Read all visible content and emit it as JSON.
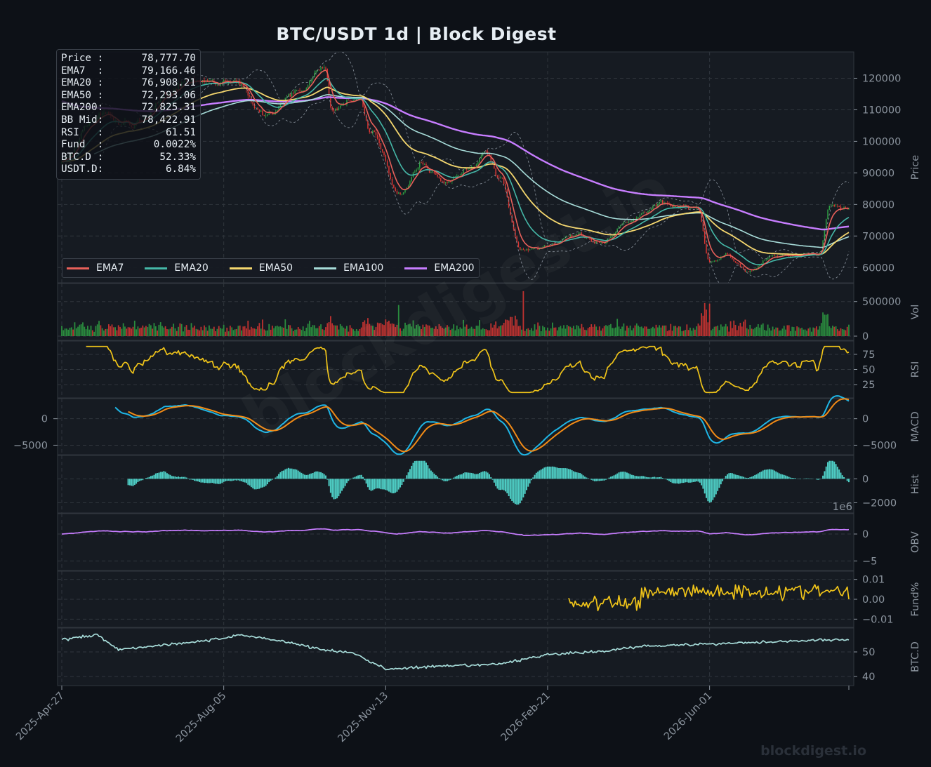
{
  "title": "BTC/USDT  1d  |  Block Digest",
  "info_box": [
    {
      "label": "Price :",
      "value": "78,777.70"
    },
    {
      "label": "EMA7  :",
      "value": "79,166.46"
    },
    {
      "label": "EMA20 :",
      "value": "76,908.21"
    },
    {
      "label": "EMA50 :",
      "value": "72,293.06"
    },
    {
      "label": "EMA200:",
      "value": "72,825.31"
    },
    {
      "label": "BB Mid:",
      "value": "78,422.91"
    },
    {
      "label": "RSI   :",
      "value": "61.51"
    },
    {
      "label": "Fund  :",
      "value": "0.0022%"
    },
    {
      "label": "BTC.D :",
      "value": "52.33%"
    },
    {
      "label": "USDT.D:",
      "value": "6.84%"
    }
  ],
  "legend": [
    {
      "name": "EMA7",
      "color": "#e8605a"
    },
    {
      "name": "EMA20",
      "color": "#45b8a8"
    },
    {
      "name": "EMA50",
      "color": "#f5d76e"
    },
    {
      "name": "EMA100",
      "color": "#a7dcd9"
    },
    {
      "name": "EMA200",
      "color": "#c77dff"
    }
  ],
  "watermark": "blockdigest.io",
  "footer_brand": "blockdigest.io",
  "colors": {
    "background": "#0d1117",
    "panel": "#161b22",
    "up": "#2ea043",
    "down": "#da3633",
    "ema7": "#e8605a",
    "ema20": "#45b8a8",
    "ema50": "#f5d76e",
    "ema100": "#a7dcd9",
    "ema200": "#c77dff",
    "rsi": "#f0c419",
    "macd": "#1fb6e6",
    "signal": "#f28b16",
    "hist": "#4ecdc4",
    "obv": "#c77dff",
    "funding": "#f0c419",
    "btcd": "#a7dcd9",
    "bb": "#8b949e"
  },
  "chart_data": {
    "type": "candlestick",
    "x_tick_labels": [
      "2025-Apr-27",
      "2025-Aug-05",
      "2025-Nov-13",
      "2026-Feb-21",
      "2026-Jun-01"
    ],
    "x_range": [
      "2025-04-27",
      "2026-08-26"
    ],
    "price_anchors": [
      [
        "2025-04-27",
        94000
      ],
      [
        "2025-05-22",
        109000
      ],
      [
        "2025-06-05",
        105000
      ],
      [
        "2025-07-14",
        119000
      ],
      [
        "2025-08-14",
        118000
      ],
      [
        "2025-09-01",
        108500
      ],
      [
        "2025-09-20",
        115500
      ],
      [
        "2025-10-06",
        124000
      ],
      [
        "2025-10-11",
        111000
      ],
      [
        "2025-10-28",
        113500
      ],
      [
        "2025-11-04",
        103000
      ],
      [
        "2025-11-21",
        84500
      ],
      [
        "2025-12-05",
        92500
      ],
      [
        "2025-12-20",
        87500
      ],
      [
        "2026-01-05",
        91500
      ],
      [
        "2026-01-14",
        96500
      ],
      [
        "2026-01-22",
        89000
      ],
      [
        "2026-02-05",
        65000
      ],
      [
        "2026-02-21",
        67000
      ],
      [
        "2026-03-12",
        71000
      ],
      [
        "2026-03-25",
        67500
      ],
      [
        "2026-04-10",
        74000
      ],
      [
        "2026-05-01",
        80000
      ],
      [
        "2026-05-12",
        79000
      ],
      [
        "2026-05-24",
        78500
      ],
      [
        "2026-06-01",
        62000
      ],
      [
        "2026-06-10",
        63500
      ],
      [
        "2026-06-25",
        59000
      ],
      [
        "2026-07-10",
        63000
      ],
      [
        "2026-08-08",
        64500
      ],
      [
        "2026-08-14",
        79500
      ],
      [
        "2026-08-26",
        78777.7
      ]
    ],
    "panels": [
      {
        "name": "Price",
        "ylabel": "Price",
        "ylim": [
          56500,
          127000
        ],
        "ticks": [
          60000,
          70000,
          80000,
          90000,
          100000,
          110000,
          120000
        ],
        "series": [
          "EMA7",
          "EMA20",
          "EMA50",
          "EMA100",
          "EMA200",
          "Bollinger Bands"
        ]
      },
      {
        "name": "Vol",
        "ylabel": "Vol",
        "ylim": [
          0,
          700000
        ],
        "ticks": [
          0,
          500000
        ]
      },
      {
        "name": "RSI",
        "ylabel": "RSI",
        "ylim": [
          10,
          90
        ],
        "ticks": [
          25,
          50,
          75
        ]
      },
      {
        "name": "MACD",
        "ylabel": "MACD",
        "ylim": [
          -6000,
          3000
        ],
        "ticks": [
          -5000,
          0
        ]
      },
      {
        "name": "Hist",
        "ylabel": "Hist",
        "ylim": [
          -2500,
          1600
        ],
        "ticks": [
          -2000,
          0
        ]
      },
      {
        "name": "OBV",
        "ylabel": "OBV",
        "ylim": [
          -6,
          3
        ],
        "ticks": [
          -5,
          0
        ],
        "scale_label": "1e6"
      },
      {
        "name": "Fund%",
        "ylabel": "Fund%",
        "ylim": [
          -0.012,
          0.012
        ],
        "ticks": [
          -0.01,
          0.0,
          0.01
        ],
        "start": "2026-03-06"
      },
      {
        "name": "BTC.D",
        "ylabel": "BTC.D",
        "ylim": [
          38,
          58
        ],
        "ticks": [
          40,
          50
        ]
      }
    ],
    "last_values": {
      "price": 78777.7,
      "ema7": 79166.46,
      "ema20": 76908.21,
      "ema50": 72293.06,
      "ema200": 72825.31,
      "bb_mid": 78422.91,
      "rsi": 61.51,
      "funding_pct": 0.0022,
      "btc_d": 52.33,
      "usdt_d": 6.84
    }
  }
}
